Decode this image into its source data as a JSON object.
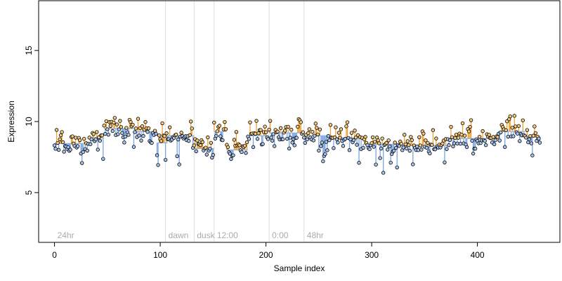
{
  "chart_data": {
    "type": "scatter",
    "title": "",
    "xlabel": "Sample index",
    "ylabel": "Expression",
    "xlim": [
      -15,
      478
    ],
    "ylim": [
      1.5,
      18.5
    ],
    "x_ticks": [
      0,
      100,
      200,
      300,
      400
    ],
    "y_ticks": [
      5,
      10,
      15
    ],
    "grid": false,
    "separators": [
      {
        "x": 0,
        "label": "24hr"
      },
      {
        "x": 105,
        "label": "dawn"
      },
      {
        "x": 132,
        "label": "dusk"
      },
      {
        "x": 151,
        "label": "12:00"
      },
      {
        "x": 203,
        "label": "0:00"
      },
      {
        "x": 236,
        "label": "48hr"
      }
    ],
    "segments": [
      {
        "from": 0,
        "to": 33,
        "level": 8.45
      },
      {
        "from": 33,
        "to": 47,
        "level": 8.85
      },
      {
        "from": 47,
        "to": 75,
        "level": 9.5
      },
      {
        "from": 75,
        "to": 97,
        "level": 9.3
      },
      {
        "from": 97,
        "to": 107,
        "level": 8.5
      },
      {
        "from": 107,
        "to": 132,
        "level": 9.0
      },
      {
        "from": 132,
        "to": 151,
        "level": 8.1
      },
      {
        "from": 151,
        "to": 163,
        "level": 9.3
      },
      {
        "from": 163,
        "to": 183,
        "level": 8.0
      },
      {
        "from": 183,
        "to": 203,
        "level": 9.0
      },
      {
        "from": 203,
        "to": 236,
        "level": 9.2
      },
      {
        "from": 236,
        "to": 262,
        "level": 9.0
      },
      {
        "from": 262,
        "to": 292,
        "level": 8.85
      },
      {
        "from": 292,
        "to": 330,
        "level": 8.4
      },
      {
        "from": 330,
        "to": 372,
        "level": 8.3
      },
      {
        "from": 372,
        "to": 420,
        "level": 8.8
      },
      {
        "from": 420,
        "to": 445,
        "level": 9.3
      },
      {
        "from": 445,
        "to": 460,
        "level": 8.9
      }
    ],
    "colors": {
      "point_fill_up": "#f5c87a",
      "point_fill_down": "#a8c4ec",
      "stem_up": "#f0a030",
      "stem_down": "#7aa5e0",
      "point_stroke": "#000000",
      "separator": "#dddddd",
      "axis": "#000000"
    }
  }
}
